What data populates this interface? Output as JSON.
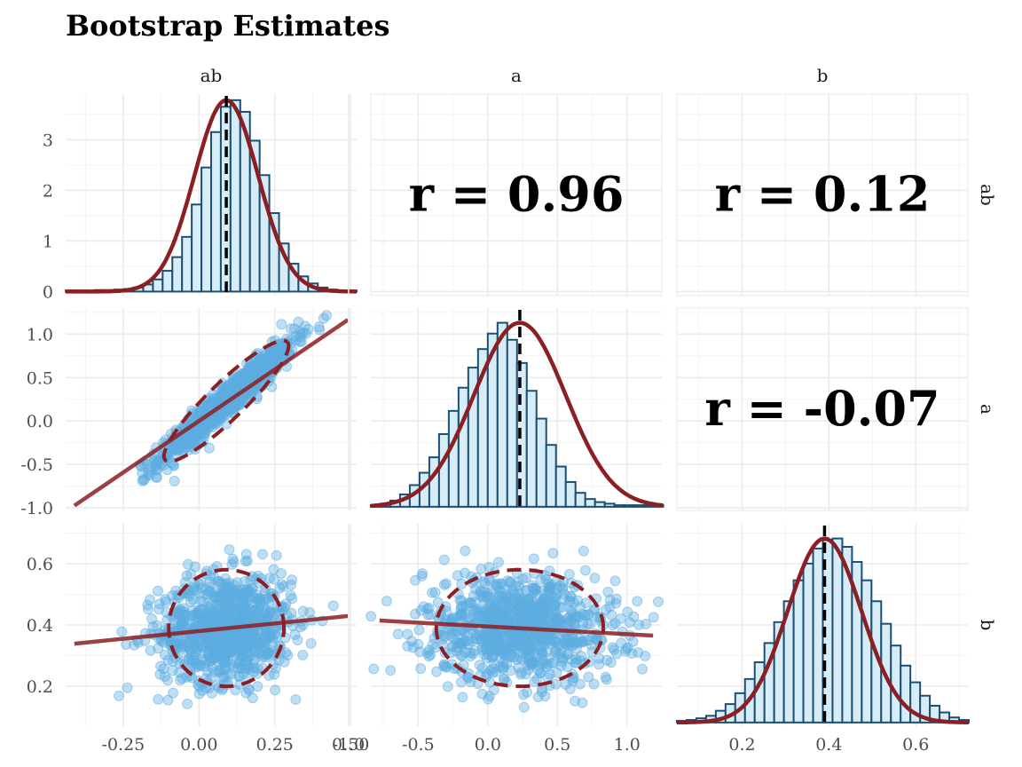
{
  "chart_data": {
    "type": "pairs",
    "title": "Bootstrap Estimates",
    "variables": [
      {
        "name": "ab",
        "xlim": [
          -0.44,
          0.52
        ],
        "ticks": [
          -0.25,
          0.0,
          0.25,
          0.5
        ],
        "tick_labels": [
          "-0.25",
          "0.00",
          "0.25",
          "0.50"
        ],
        "mean": 0.09,
        "sd": 0.105
      },
      {
        "name": "a",
        "xlim": [
          -0.84,
          1.25
        ],
        "ticks": [
          -1.0,
          -0.5,
          0.0,
          0.5,
          1.0
        ],
        "tick_labels": [
          "-1.0",
          "-0.5",
          "0.0",
          "0.5",
          "1.0"
        ],
        "mean": 0.23,
        "sd": 0.33
      },
      {
        "name": "b",
        "xlim": [
          0.05,
          0.72
        ],
        "ticks": [
          0.2,
          0.4,
          0.6
        ],
        "tick_labels": [
          "0.2",
          "0.4",
          "0.6"
        ],
        "mean": 0.39,
        "sd": 0.085
      }
    ],
    "row_ylims": [
      [
        -0.08,
        3.9
      ],
      [
        -1.03,
        1.3
      ],
      [
        0.07,
        0.73
      ]
    ],
    "row_ticks": [
      {
        "values": [
          0,
          1,
          2,
          3
        ],
        "labels": [
          "0",
          "1",
          "2",
          "3"
        ]
      },
      {
        "values": [
          -1.0,
          -0.5,
          0.0,
          0.5,
          1.0
        ],
        "labels": [
          "-1.0",
          "-0.5",
          "0.0",
          "0.5",
          "1.0"
        ]
      },
      {
        "values": [
          0.2,
          0.4,
          0.6
        ],
        "labels": [
          "0.2",
          "0.4",
          "0.6"
        ]
      }
    ],
    "correlations": [
      {
        "row": 0,
        "col": 1,
        "label": "r = 0.96"
      },
      {
        "row": 0,
        "col": 2,
        "label": "r = 0.12"
      },
      {
        "row": 1,
        "col": 2,
        "label": "r = -0.07"
      }
    ],
    "histograms": [
      {
        "var": "ab",
        "bin_start": -0.44,
        "bin_width": 0.032,
        "heights": [
          0.02,
          0.02,
          0.02,
          0.03,
          0.03,
          0.04,
          0.05,
          0.08,
          0.14,
          0.24,
          0.41,
          0.68,
          1.08,
          1.72,
          2.45,
          3.15,
          3.65,
          3.78,
          3.55,
          2.98,
          2.3,
          1.55,
          0.95,
          0.55,
          0.3,
          0.16,
          0.08,
          0.04,
          0.02,
          0.02
        ]
      },
      {
        "var": "a",
        "bin_start": -0.84,
        "bin_width": 0.07,
        "heights": [
          0.01,
          0.02,
          0.04,
          0.08,
          0.14,
          0.22,
          0.32,
          0.47,
          0.62,
          0.77,
          0.9,
          1.02,
          1.12,
          1.19,
          1.08,
          0.93,
          0.75,
          0.57,
          0.4,
          0.26,
          0.16,
          0.09,
          0.05,
          0.03,
          0.02,
          0.01,
          0.01,
          0.01,
          0.01,
          0.01
        ]
      },
      {
        "var": "b",
        "bin_start": 0.05,
        "bin_width": 0.0224,
        "heights": [
          0.02,
          0.03,
          0.05,
          0.08,
          0.14,
          0.22,
          0.35,
          0.52,
          0.72,
          0.95,
          1.2,
          1.45,
          1.7,
          1.9,
          2.08,
          2.18,
          2.2,
          2.1,
          1.92,
          1.7,
          1.45,
          1.18,
          0.92,
          0.68,
          0.48,
          0.32,
          0.2,
          0.12,
          0.06,
          0.03
        ]
      }
    ],
    "scatter": [
      {
        "row": 1,
        "col": 0,
        "slope": 2.37,
        "intercept": 0.0,
        "ellipse": {
          "cx": 0.09,
          "cy": 0.23,
          "major": 0.28,
          "minor": 0.06,
          "angle_deg": 71
        }
      },
      {
        "row": 2,
        "col": 0,
        "slope": 0.1,
        "intercept": 0.38,
        "ellipse": {
          "cx": 0.09,
          "cy": 0.39,
          "rx": 0.19,
          "ry": 0.19
        }
      },
      {
        "row": 2,
        "col": 1,
        "slope": -0.025,
        "intercept": 0.395,
        "ellipse": {
          "cx": 0.23,
          "cy": 0.39,
          "rx": 0.6,
          "ry": 0.19
        }
      }
    ],
    "colors": {
      "hist_fill": "#d6ecf7",
      "hist_stroke": "#1d4f73",
      "density": "#8b1f23",
      "points": "#5dade2",
      "fit_line": "#8b1f23",
      "mean_line": "#000000"
    },
    "grid": true
  }
}
